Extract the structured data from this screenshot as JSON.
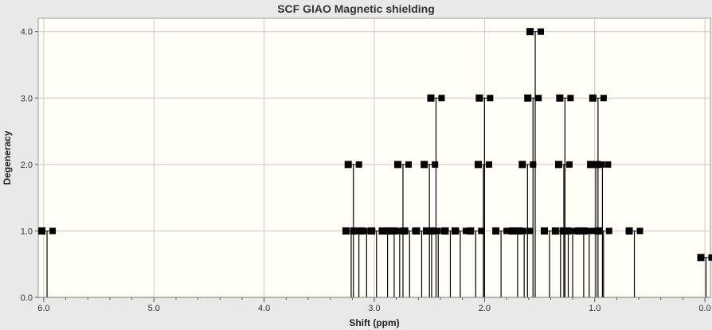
{
  "window": {
    "title": "SCF GIAO Magnetic shielding"
  },
  "colors": {
    "plot_bg": "#fffff7",
    "grid": "#c8c8c8",
    "stick": "#000000",
    "frame": "#e9e9e9"
  },
  "chart_data": {
    "type": "bar",
    "title": "SCF GIAO Magnetic shielding",
    "xlabel": "Shift (ppm)",
    "ylabel": "Degeneracy",
    "xlim": [
      6.05,
      -0.05
    ],
    "ylim": [
      0.0,
      4.2
    ],
    "x_reversed": true,
    "grid": true,
    "xticks": [
      6.0,
      5.0,
      4.0,
      3.0,
      2.0,
      1.0,
      0.0
    ],
    "xtick_labels": [
      "6.0",
      "5.0",
      "4.0",
      "3.0",
      "2.0",
      "1.0",
      "0.0"
    ],
    "yticks": [
      0.0,
      1.0,
      2.0,
      3.0,
      4.0
    ],
    "ytick_labels": [
      "0.0",
      "1.0",
      "2.0",
      "3.0",
      "4.0"
    ],
    "series": [
      {
        "peaks": [
          {
            "x": 5.97,
            "y": 1
          },
          {
            "x": 3.21,
            "y": 1
          },
          {
            "x": 3.19,
            "y": 2
          },
          {
            "x": 3.14,
            "y": 1
          },
          {
            "x": 3.07,
            "y": 1
          },
          {
            "x": 2.98,
            "y": 1
          },
          {
            "x": 2.88,
            "y": 1
          },
          {
            "x": 2.82,
            "y": 1
          },
          {
            "x": 2.77,
            "y": 1
          },
          {
            "x": 2.74,
            "y": 2
          },
          {
            "x": 2.68,
            "y": 1
          },
          {
            "x": 2.57,
            "y": 1
          },
          {
            "x": 2.5,
            "y": 2
          },
          {
            "x": 2.48,
            "y": 1
          },
          {
            "x": 2.44,
            "y": 3
          },
          {
            "x": 2.42,
            "y": 1
          },
          {
            "x": 2.31,
            "y": 1
          },
          {
            "x": 2.22,
            "y": 1
          },
          {
            "x": 2.08,
            "y": 1
          },
          {
            "x": 2.01,
            "y": 2
          },
          {
            "x": 2.0,
            "y": 3
          },
          {
            "x": 1.85,
            "y": 1
          },
          {
            "x": 1.7,
            "y": 1
          },
          {
            "x": 1.64,
            "y": 1
          },
          {
            "x": 1.61,
            "y": 2
          },
          {
            "x": 1.56,
            "y": 3
          },
          {
            "x": 1.54,
            "y": 4
          },
          {
            "x": 1.41,
            "y": 1
          },
          {
            "x": 1.31,
            "y": 1
          },
          {
            "x": 1.28,
            "y": 2
          },
          {
            "x": 1.27,
            "y": 3
          },
          {
            "x": 1.24,
            "y": 1
          },
          {
            "x": 1.2,
            "y": 1
          },
          {
            "x": 1.1,
            "y": 1
          },
          {
            "x": 1.05,
            "y": 1
          },
          {
            "x": 0.99,
            "y": 2
          },
          {
            "x": 0.97,
            "y": 3
          },
          {
            "x": 0.93,
            "y": 2
          },
          {
            "x": 0.92,
            "y": 1
          },
          {
            "x": 0.64,
            "y": 1
          },
          {
            "x": -0.01,
            "y": 0.6
          }
        ]
      }
    ]
  }
}
